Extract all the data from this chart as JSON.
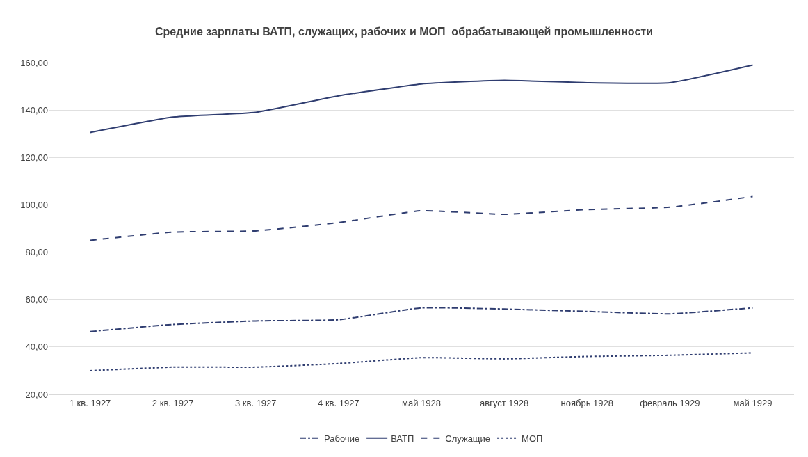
{
  "chart_data": {
    "type": "line",
    "title": "Средние зарплаты ВАТП, служащих, рабочих и МОП  обрабатывающей промышленности",
    "categories": [
      "1 кв. 1927",
      "2 кв. 1927",
      "3 кв. 1927",
      "4 кв. 1927",
      "май 1928",
      "август 1928",
      "ноябрь 1928",
      "февраль 1929",
      "май 1929"
    ],
    "series": [
      {
        "name": "Рабочие",
        "color": "#2f3d70",
        "line_style": "dashdot",
        "values": [
          46.5,
          49.5,
          51,
          51.5,
          56.5,
          56,
          55,
          54,
          56.5
        ]
      },
      {
        "name": "ВАТП",
        "color": "#2f3d70",
        "line_style": "solid",
        "values": [
          130.5,
          137,
          139,
          146,
          151,
          152.5,
          151.5,
          151.5,
          159
        ]
      },
      {
        "name": "Служащие",
        "color": "#2f3d70",
        "line_style": "dashed",
        "values": [
          85,
          88.5,
          89,
          92.5,
          97.5,
          96,
          98,
          99,
          103.5
        ]
      },
      {
        "name": "МОП",
        "color": "#2f3d70",
        "line_style": "dotted",
        "values": [
          30,
          31.5,
          31.5,
          33,
          35.5,
          35,
          36,
          36.5,
          37.5
        ]
      }
    ],
    "ylim": [
      20,
      160
    ],
    "yticks": [
      {
        "value": 20,
        "label": "20,00"
      },
      {
        "value": 40,
        "label": "40,00"
      },
      {
        "value": 60,
        "label": "60,00"
      },
      {
        "value": 80,
        "label": "80,00"
      },
      {
        "value": 100,
        "label": "100,00"
      },
      {
        "value": 120,
        "label": "120,00"
      },
      {
        "value": 140,
        "label": "140,00"
      },
      {
        "value": 160,
        "label": "160,00"
      }
    ],
    "grid": "y",
    "legend": "bottom",
    "marker": "none"
  }
}
